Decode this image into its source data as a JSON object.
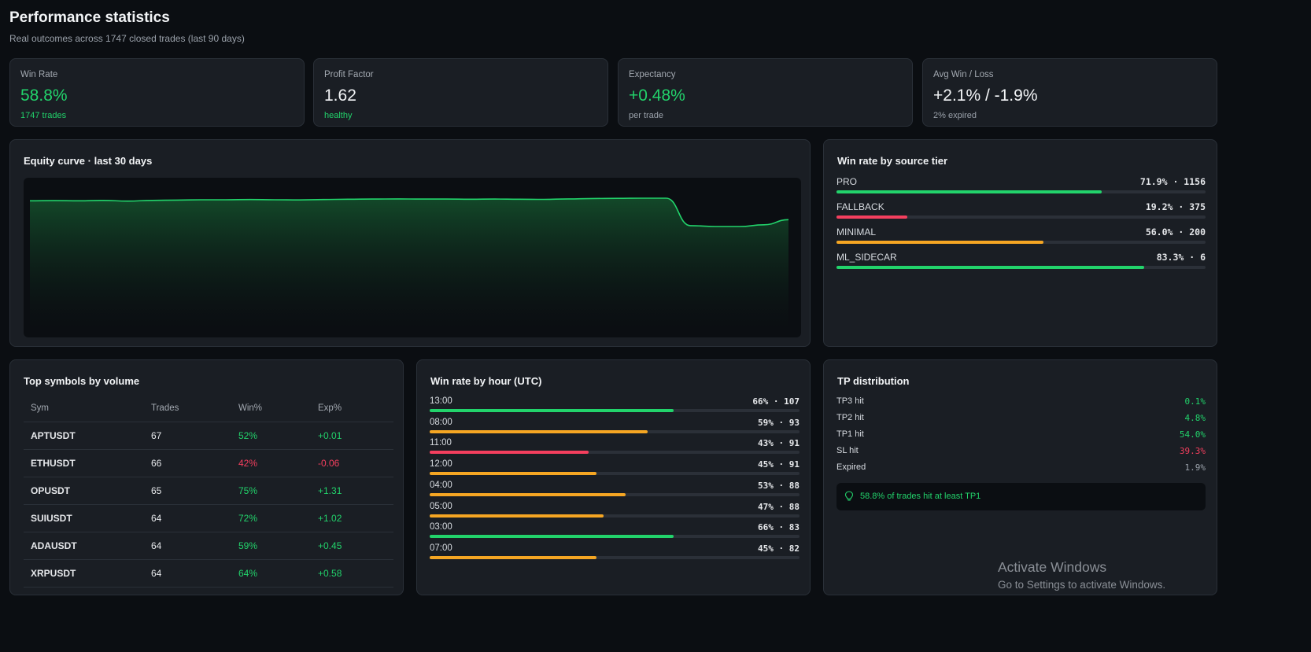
{
  "header": {
    "title": "Performance statistics",
    "subtitle": "Real outcomes across 1747 closed trades (last 90 days)"
  },
  "stats": [
    {
      "label": "Win Rate",
      "value": "58.8%",
      "sub": "1747 trades"
    },
    {
      "label": "Profit Factor",
      "value": "1.62",
      "sub": "healthy"
    },
    {
      "label": "Expectancy",
      "value": "+0.48%",
      "sub": "per trade"
    },
    {
      "label": "Avg Win / Loss",
      "value": "+2.1% / -1.9%",
      "sub": "2% expired"
    }
  ],
  "equity": {
    "title": "Equity curve · last 30 days",
    "chart_data": {
      "type": "area",
      "title": "Equity curve · last 30 days",
      "values": [
        0.9,
        0.91,
        0.9,
        0.92,
        0.88,
        0.92,
        0.94,
        0.96,
        0.96,
        0.97,
        0.96,
        0.95,
        0.97,
        0.99,
        1.0,
        1.01,
        1.0,
        1.0,
        0.99,
        1.0,
        0.99,
        0.98,
        1.01,
        1.03,
        1.04,
        1.05,
        1.05,
        -0.55,
        -0.6,
        -0.6,
        -0.5,
        -0.2
      ],
      "grid": false,
      "line_color": "#22d36b"
    }
  },
  "tiers": {
    "title": "Win rate by source tier",
    "items": [
      {
        "label": "PRO",
        "value": "71.9% · 1156",
        "pct": 71.9,
        "color": "#22d36b"
      },
      {
        "label": "FALLBACK",
        "value": "19.2% · 375",
        "pct": 19.2,
        "color": "#f43f5e"
      },
      {
        "label": "MINIMAL",
        "value": "56.0% · 200",
        "pct": 56.0,
        "color": "#f5a623"
      },
      {
        "label": "ML_SIDECAR",
        "value": "83.3% · 6",
        "pct": 83.3,
        "color": "#22d36b"
      }
    ]
  },
  "symbols": {
    "title": "Top symbols by volume",
    "columns": [
      "Sym",
      "Trades",
      "Win%",
      "Exp%"
    ],
    "rows": [
      {
        "sym": "APTUSDT",
        "trades": "67",
        "win": "52%",
        "exp": "+0.01",
        "win_color": "#22d36b",
        "exp_color": "#22d36b"
      },
      {
        "sym": "ETHUSDT",
        "trades": "66",
        "win": "42%",
        "exp": "-0.06",
        "win_color": "#f43f5e",
        "exp_color": "#f43f5e"
      },
      {
        "sym": "OPUSDT",
        "trades": "65",
        "win": "75%",
        "exp": "+1.31",
        "win_color": "#22d36b",
        "exp_color": "#22d36b"
      },
      {
        "sym": "SUIUSDT",
        "trades": "64",
        "win": "72%",
        "exp": "+1.02",
        "win_color": "#22d36b",
        "exp_color": "#22d36b"
      },
      {
        "sym": "ADAUSDT",
        "trades": "64",
        "win": "59%",
        "exp": "+0.45",
        "win_color": "#22d36b",
        "exp_color": "#22d36b"
      },
      {
        "sym": "XRPUSDT",
        "trades": "64",
        "win": "64%",
        "exp": "+0.58",
        "win_color": "#22d36b",
        "exp_color": "#22d36b"
      }
    ]
  },
  "hours": {
    "title": "Win rate by hour (UTC)",
    "items": [
      {
        "label": "13:00",
        "value": "66% · 107",
        "pct": 66,
        "color": "#22d36b"
      },
      {
        "label": "08:00",
        "value": "59% · 93",
        "pct": 59,
        "color": "#f5a623"
      },
      {
        "label": "11:00",
        "value": "43% · 91",
        "pct": 43,
        "color": "#f43f5e"
      },
      {
        "label": "12:00",
        "value": "45% · 91",
        "pct": 45,
        "color": "#f5a623"
      },
      {
        "label": "04:00",
        "value": "53% · 88",
        "pct": 53,
        "color": "#f5a623"
      },
      {
        "label": "05:00",
        "value": "47% · 88",
        "pct": 47,
        "color": "#f5a623"
      },
      {
        "label": "03:00",
        "value": "66% · 83",
        "pct": 66,
        "color": "#22d36b"
      },
      {
        "label": "07:00",
        "value": "45% · 82",
        "pct": 45,
        "color": "#f5a623"
      }
    ]
  },
  "tp": {
    "title": "TP distribution",
    "items": [
      {
        "label": "TP3 hit",
        "value": "0.1%",
        "color": "#22d36b"
      },
      {
        "label": "TP2 hit",
        "value": "4.8%",
        "color": "#22d36b"
      },
      {
        "label": "TP1 hit",
        "value": "54.0%",
        "color": "#22d36b"
      },
      {
        "label": "SL hit",
        "value": "39.3%",
        "color": "#f43f5e"
      },
      {
        "label": "Expired",
        "value": "1.9%",
        "color": "#9aa1aa"
      }
    ],
    "note": "58.8% of trades hit at least TP1"
  },
  "watermark": {
    "title": "Activate Windows",
    "sub": "Go to Settings to activate Windows."
  }
}
